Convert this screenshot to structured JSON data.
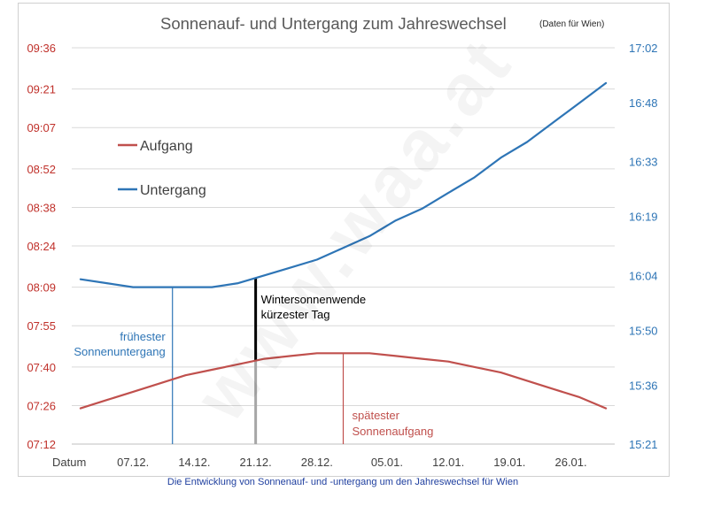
{
  "chart_data": {
    "type": "line",
    "title": "Sonnenauf- und Untergang zum Jahreswechsel",
    "subtitle": "(Daten für Wien)",
    "x_label": "Datum",
    "x_tick_labels": [
      "07.12.",
      "14.12.",
      "21.12.",
      "28.12.",
      "05.01.",
      "12.01.",
      "19.01.",
      "26.01."
    ],
    "x_tick_days": [
      7,
      14,
      21,
      28,
      36,
      43,
      50,
      57
    ],
    "xlim": [
      0,
      62
    ],
    "y_left_ticks": [
      "07:12",
      "07:26",
      "07:40",
      "07:55",
      "08:09",
      "08:24",
      "08:38",
      "08:52",
      "09:07",
      "09:21",
      "09:36"
    ],
    "y_left_range": [
      "07:12",
      "09:36"
    ],
    "y_right_ticks": [
      "15:21",
      "15:36",
      "15:50",
      "16:04",
      "16:19",
      "16:33",
      "16:48",
      "17:02"
    ],
    "y_right_range": [
      "15:21",
      "17:02"
    ],
    "grid": true,
    "legend_position": "top-left",
    "series": [
      {
        "name": "Aufgang",
        "axis": "left",
        "color": "#c0504d",
        "x": [
          1,
          4,
          7,
          10,
          13,
          16,
          19,
          22,
          25,
          28,
          31,
          34,
          37,
          40,
          43,
          46,
          49,
          52,
          55,
          58,
          61
        ],
        "y": [
          "07:25",
          "07:28",
          "07:31",
          "07:34",
          "07:37",
          "07:39",
          "07:41",
          "07:43",
          "07:44",
          "07:45",
          "07:45",
          "07:45",
          "07:44",
          "07:43",
          "07:42",
          "07:40",
          "07:38",
          "07:35",
          "07:32",
          "07:29",
          "07:25"
        ]
      },
      {
        "name": "Untergang",
        "axis": "right",
        "color": "#2e75b6",
        "x": [
          1,
          4,
          7,
          10,
          13,
          16,
          19,
          22,
          25,
          28,
          31,
          34,
          37,
          40,
          43,
          46,
          49,
          52,
          55,
          58,
          61
        ],
        "y": [
          "16:03",
          "16:02",
          "16:01",
          "16:01",
          "16:01",
          "16:01",
          "16:02",
          "16:04",
          "16:06",
          "16:08",
          "16:11",
          "16:14",
          "16:18",
          "16:21",
          "16:25",
          "16:29",
          "16:34",
          "16:38",
          "16:43",
          "16:48",
          "16:53"
        ]
      }
    ],
    "annotations": [
      {
        "lines": [
          "frühester",
          "Sonnenuntergang"
        ],
        "color": "#2e75b6",
        "at_day": 11.5
      },
      {
        "lines": [
          "Wintersonnenwende",
          "kürzester Tag"
        ],
        "color": "#000000",
        "at_day": 21
      },
      {
        "lines": [
          "spätester",
          "Sonnenaufgang"
        ],
        "color": "#c0504d",
        "at_day": 31
      }
    ]
  },
  "caption": "Die Entwicklung von Sonnenauf- und -untergang um den Jahreswechsel für Wien",
  "watermark": "www.waa.at"
}
